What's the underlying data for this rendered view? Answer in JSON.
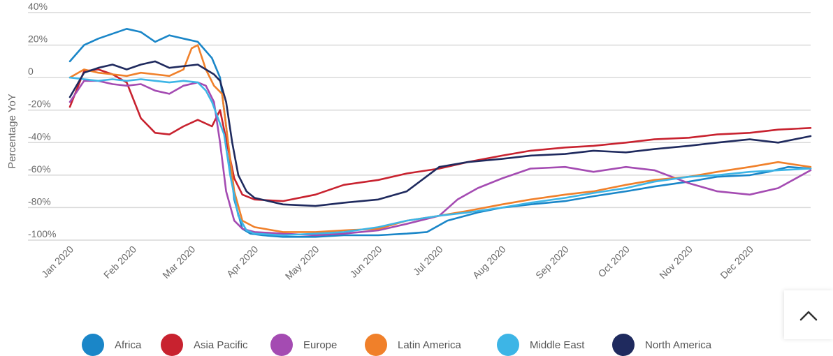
{
  "chart_data": {
    "type": "line",
    "ylabel": "Percentage YoY",
    "ylim": [
      -100,
      40
    ],
    "yticks": [
      40,
      20,
      0,
      -20,
      -40,
      -60,
      -80,
      -100
    ],
    "ytick_labels": [
      "40%",
      "20%",
      "0",
      "-20%",
      "-40%",
      "-60%",
      "-80%",
      "-100%"
    ],
    "xlim": [
      "2020-01-01",
      "2020-12-31"
    ],
    "xticks": [
      "2020-01-01",
      "2020-02-01",
      "2020-03-01",
      "2020-04-01",
      "2020-05-01",
      "2020-06-01",
      "2020-07-01",
      "2020-08-01",
      "2020-09-01",
      "2020-10-01",
      "2020-11-01",
      "2020-12-01"
    ],
    "xtick_labels": [
      "Jan 2020",
      "Feb 2020",
      "Mar 2020",
      "Apr 2020",
      "May 2020",
      "Jun 2020",
      "Jul 2020",
      "Aug 2020",
      "Sep 2020",
      "Oct 2020",
      "Nov 2020",
      "Dec 2020"
    ],
    "grid": true,
    "legend_position": "bottom",
    "series": [
      {
        "name": "Africa",
        "color": "#1a86c8",
        "x": [
          "2020-01-01",
          "2020-01-08",
          "2020-01-15",
          "2020-01-22",
          "2020-01-29",
          "2020-02-05",
          "2020-02-12",
          "2020-02-19",
          "2020-02-26",
          "2020-03-04",
          "2020-03-11",
          "2020-03-15",
          "2020-03-18",
          "2020-03-22",
          "2020-03-26",
          "2020-03-30",
          "2020-04-05",
          "2020-04-15",
          "2020-05-01",
          "2020-05-15",
          "2020-06-01",
          "2020-06-15",
          "2020-06-25",
          "2020-07-05",
          "2020-07-20",
          "2020-08-01",
          "2020-08-15",
          "2020-09-01",
          "2020-09-15",
          "2020-10-01",
          "2020-10-15",
          "2020-11-01",
          "2020-11-15",
          "2020-12-01",
          "2020-12-10",
          "2020-12-20",
          "2020-12-31"
        ],
        "y": [
          10,
          20,
          24,
          27,
          30,
          28,
          22,
          26,
          24,
          22,
          12,
          0,
          -30,
          -75,
          -93,
          -96,
          -97,
          -98,
          -98,
          -97,
          -97,
          -96,
          -95,
          -88,
          -83,
          -80,
          -78,
          -76,
          -73,
          -70,
          -67,
          -64,
          -61,
          -60,
          -58,
          -55,
          -56
        ]
      },
      {
        "name": "Asia Pacific",
        "color": "#c8222f",
        "x": [
          "2020-01-01",
          "2020-01-08",
          "2020-01-15",
          "2020-01-22",
          "2020-01-29",
          "2020-02-05",
          "2020-02-12",
          "2020-02-19",
          "2020-02-26",
          "2020-03-04",
          "2020-03-11",
          "2020-03-15",
          "2020-03-18",
          "2020-03-22",
          "2020-03-26",
          "2020-04-01",
          "2020-04-15",
          "2020-05-01",
          "2020-05-15",
          "2020-06-01",
          "2020-06-15",
          "2020-07-01",
          "2020-07-15",
          "2020-08-01",
          "2020-08-15",
          "2020-09-01",
          "2020-09-15",
          "2020-10-01",
          "2020-10-15",
          "2020-11-01",
          "2020-11-15",
          "2020-12-01",
          "2020-12-15",
          "2020-12-31"
        ],
        "y": [
          -18,
          4,
          5,
          2,
          -3,
          -25,
          -34,
          -35,
          -30,
          -26,
          -30,
          -20,
          -38,
          -62,
          -72,
          -75,
          -76,
          -72,
          -66,
          -63,
          -59,
          -56,
          -52,
          -48,
          -45,
          -43,
          -42,
          -40,
          -38,
          -37,
          -35,
          -34,
          -32,
          -31
        ]
      },
      {
        "name": "Europe",
        "color": "#a44bb2",
        "x": [
          "2020-01-01",
          "2020-01-08",
          "2020-01-15",
          "2020-01-22",
          "2020-01-29",
          "2020-02-05",
          "2020-02-12",
          "2020-02-19",
          "2020-02-26",
          "2020-03-04",
          "2020-03-08",
          "2020-03-12",
          "2020-03-15",
          "2020-03-18",
          "2020-03-22",
          "2020-03-26",
          "2020-04-01",
          "2020-04-15",
          "2020-05-01",
          "2020-05-15",
          "2020-06-01",
          "2020-06-15",
          "2020-07-01",
          "2020-07-10",
          "2020-07-20",
          "2020-08-01",
          "2020-08-15",
          "2020-09-01",
          "2020-09-15",
          "2020-10-01",
          "2020-10-15",
          "2020-11-01",
          "2020-11-15",
          "2020-12-01",
          "2020-12-15",
          "2020-12-31"
        ],
        "y": [
          -15,
          -2,
          -2,
          -4,
          -5,
          -4,
          -8,
          -10,
          -5,
          -3,
          -5,
          -15,
          -40,
          -70,
          -88,
          -93,
          -95,
          -96,
          -97,
          -96,
          -94,
          -90,
          -85,
          -75,
          -68,
          -62,
          -56,
          -55,
          -58,
          -55,
          -57,
          -65,
          -70,
          -72,
          -68,
          -57
        ]
      },
      {
        "name": "Latin America",
        "color": "#f0802a",
        "x": [
          "2020-01-01",
          "2020-01-08",
          "2020-01-15",
          "2020-01-22",
          "2020-01-29",
          "2020-02-05",
          "2020-02-12",
          "2020-02-19",
          "2020-02-26",
          "2020-03-01",
          "2020-03-04",
          "2020-03-08",
          "2020-03-12",
          "2020-03-16",
          "2020-03-18",
          "2020-03-22",
          "2020-03-26",
          "2020-04-01",
          "2020-04-15",
          "2020-05-01",
          "2020-05-15",
          "2020-06-01",
          "2020-06-15",
          "2020-07-01",
          "2020-07-15",
          "2020-08-01",
          "2020-08-15",
          "2020-09-01",
          "2020-09-15",
          "2020-10-01",
          "2020-10-15",
          "2020-11-01",
          "2020-11-15",
          "2020-12-01",
          "2020-12-15",
          "2020-12-31"
        ],
        "y": [
          0,
          5,
          3,
          2,
          1,
          3,
          2,
          1,
          5,
          18,
          20,
          5,
          -5,
          -10,
          -30,
          -70,
          -88,
          -92,
          -95,
          -95,
          -94,
          -93,
          -88,
          -85,
          -82,
          -78,
          -75,
          -72,
          -70,
          -66,
          -63,
          -61,
          -58,
          -55,
          -52,
          -55
        ]
      },
      {
        "name": "Middle East",
        "color": "#3db5e6",
        "x": [
          "2020-01-01",
          "2020-01-08",
          "2020-01-15",
          "2020-01-22",
          "2020-01-29",
          "2020-02-05",
          "2020-02-12",
          "2020-02-19",
          "2020-02-26",
          "2020-03-04",
          "2020-03-08",
          "2020-03-11",
          "2020-03-14",
          "2020-03-17",
          "2020-03-20",
          "2020-03-24",
          "2020-03-28",
          "2020-04-01",
          "2020-04-15",
          "2020-05-01",
          "2020-05-15",
          "2020-06-01",
          "2020-06-15",
          "2020-07-01",
          "2020-07-15",
          "2020-08-01",
          "2020-08-15",
          "2020-09-01",
          "2020-09-15",
          "2020-10-01",
          "2020-10-15",
          "2020-11-01",
          "2020-11-15",
          "2020-12-01",
          "2020-12-15",
          "2020-12-31"
        ],
        "y": [
          0,
          -1,
          -2,
          -1,
          -2,
          -1,
          -2,
          -3,
          -2,
          -3,
          -8,
          -15,
          -25,
          -35,
          -60,
          -85,
          -94,
          -96,
          -97,
          -96,
          -95,
          -92,
          -88,
          -85,
          -83,
          -80,
          -77,
          -74,
          -71,
          -68,
          -64,
          -61,
          -60,
          -58,
          -57,
          -56
        ]
      },
      {
        "name": "North America",
        "color": "#1f2a5e",
        "x": [
          "2020-01-01",
          "2020-01-08",
          "2020-01-15",
          "2020-01-22",
          "2020-01-29",
          "2020-02-05",
          "2020-02-12",
          "2020-02-19",
          "2020-02-26",
          "2020-03-04",
          "2020-03-08",
          "2020-03-12",
          "2020-03-15",
          "2020-03-18",
          "2020-03-21",
          "2020-03-24",
          "2020-03-28",
          "2020-04-01",
          "2020-04-15",
          "2020-05-01",
          "2020-05-15",
          "2020-06-01",
          "2020-06-15",
          "2020-07-01",
          "2020-07-15",
          "2020-08-01",
          "2020-08-15",
          "2020-09-01",
          "2020-09-15",
          "2020-10-01",
          "2020-10-15",
          "2020-11-01",
          "2020-11-15",
          "2020-12-01",
          "2020-12-15",
          "2020-12-31"
        ],
        "y": [
          -12,
          3,
          6,
          8,
          5,
          8,
          10,
          6,
          7,
          8,
          5,
          2,
          -2,
          -15,
          -40,
          -60,
          -70,
          -74,
          -78,
          -79,
          -77,
          -75,
          -70,
          -55,
          -52,
          -50,
          -48,
          -47,
          -45,
          -46,
          -44,
          -42,
          -40,
          -38,
          -40,
          -36
        ]
      }
    ]
  },
  "ui": {
    "icons": {
      "scroll_top": "chevron-up-icon",
      "legend_marker": "circle-icon"
    }
  }
}
